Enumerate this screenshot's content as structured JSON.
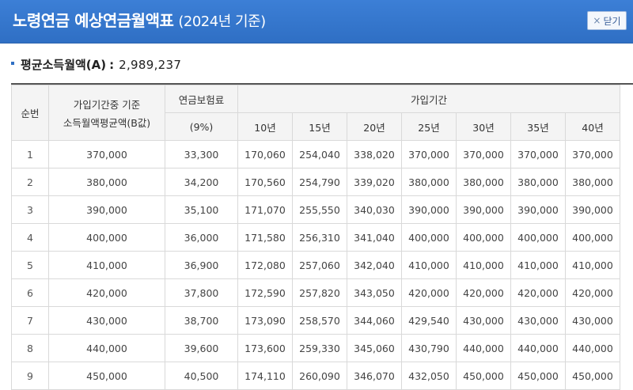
{
  "header": {
    "title": "노령연금 예상연금월액표",
    "subtitle": "(2024년 기준)",
    "close_label": "닫기",
    "close_icon": "×"
  },
  "summary": {
    "label": "평균소득월액(A)",
    "separator": ":",
    "value": "2,989,237"
  },
  "table": {
    "col_no": "순번",
    "col_income_line1": "가입기간중 기준",
    "col_income_line2": "소득월액평균액(B값)",
    "col_premium": "연금보험료",
    "col_premium_rate": "(9%)",
    "col_period": "가입기간",
    "periods": [
      "10년",
      "15년",
      "20년",
      "25년",
      "30년",
      "35년",
      "40년"
    ],
    "rows": [
      [
        "1",
        "370,000",
        "33,300",
        "170,060",
        "254,040",
        "338,020",
        "370,000",
        "370,000",
        "370,000",
        "370,000"
      ],
      [
        "2",
        "380,000",
        "34,200",
        "170,560",
        "254,790",
        "339,020",
        "380,000",
        "380,000",
        "380,000",
        "380,000"
      ],
      [
        "3",
        "390,000",
        "35,100",
        "171,070",
        "255,550",
        "340,030",
        "390,000",
        "390,000",
        "390,000",
        "390,000"
      ],
      [
        "4",
        "400,000",
        "36,000",
        "171,580",
        "256,310",
        "341,040",
        "400,000",
        "400,000",
        "400,000",
        "400,000"
      ],
      [
        "5",
        "410,000",
        "36,900",
        "172,080",
        "257,060",
        "342,040",
        "410,000",
        "410,000",
        "410,000",
        "410,000"
      ],
      [
        "6",
        "420,000",
        "37,800",
        "172,590",
        "257,820",
        "343,050",
        "420,000",
        "420,000",
        "420,000",
        "420,000"
      ],
      [
        "7",
        "430,000",
        "38,700",
        "173,090",
        "258,570",
        "344,060",
        "429,540",
        "430,000",
        "430,000",
        "430,000"
      ],
      [
        "8",
        "440,000",
        "39,600",
        "173,600",
        "259,330",
        "345,060",
        "430,790",
        "440,000",
        "440,000",
        "440,000"
      ],
      [
        "9",
        "450,000",
        "40,500",
        "174,110",
        "260,090",
        "346,070",
        "432,050",
        "450,000",
        "450,000",
        "450,000"
      ]
    ]
  },
  "colors": {
    "header_bg": "#2f6fc4",
    "table_header_bg": "#f4f4f4",
    "border": "#d9d9d9"
  }
}
